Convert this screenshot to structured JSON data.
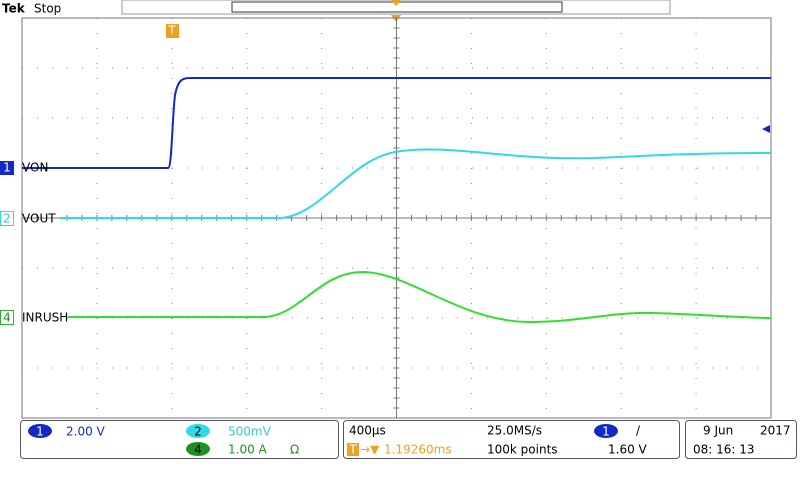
{
  "header": {
    "brand": "Tek",
    "status": "Stop"
  },
  "trigger_marker": "T",
  "channels": [
    {
      "number": "1",
      "label": "VON",
      "scale": "2.00 V"
    },
    {
      "number": "2",
      "label": "VOUT",
      "scale": "500mV"
    },
    {
      "number": "4",
      "label": "INRUSH",
      "scale": "1.00 A",
      "coupling": "Ω"
    }
  ],
  "timebase": {
    "scale": "400µs",
    "sample_rate": "25.0MS/s",
    "delay": "1.19260ms",
    "record_length": "100k points"
  },
  "trigger": {
    "source": "1",
    "slope": "/",
    "level": "1.60 V"
  },
  "date": {
    "day": "9 Jun",
    "year": "2017",
    "time": "08: 16: 13"
  }
}
